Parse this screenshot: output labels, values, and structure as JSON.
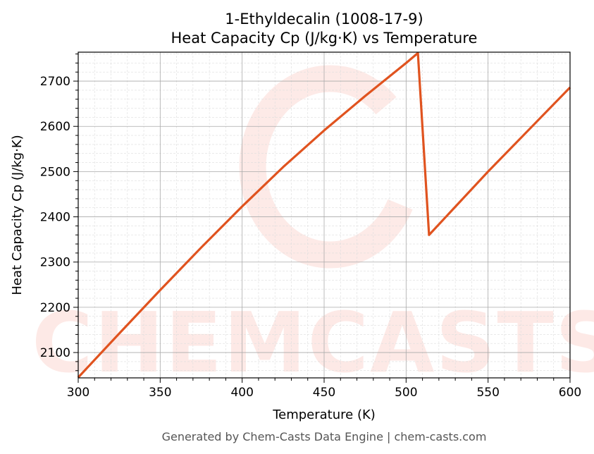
{
  "chart_data": {
    "type": "line",
    "title": "1-Ethyldecalin (1008-17-9)",
    "subtitle": "Heat Capacity Cp (J/kg·K) vs Temperature",
    "xlabel": "Temperature (K)",
    "ylabel": "Heat Capacity Cp (J/kg·K)",
    "xlim": [
      300,
      600
    ],
    "ylim": [
      2044,
      2764
    ],
    "xticks": [
      300,
      350,
      400,
      450,
      500,
      550,
      600
    ],
    "yticks": [
      2100,
      2200,
      2300,
      2400,
      2500,
      2600,
      2700
    ],
    "grid": true,
    "series": [
      {
        "color": "#e0531f",
        "x": [
          300,
          325,
          350,
          375,
          400,
          425,
          450,
          475,
          500,
          507.2,
          514,
          550,
          600
        ],
        "y": [
          2045,
          2142,
          2238,
          2332,
          2423,
          2510,
          2591,
          2667,
          2740,
          2762,
          2360,
          2500,
          2686
        ]
      }
    ]
  },
  "footer": "Generated by Chem-Casts Data Engine | chem-casts.com",
  "watermark": "CHEMCASTS"
}
